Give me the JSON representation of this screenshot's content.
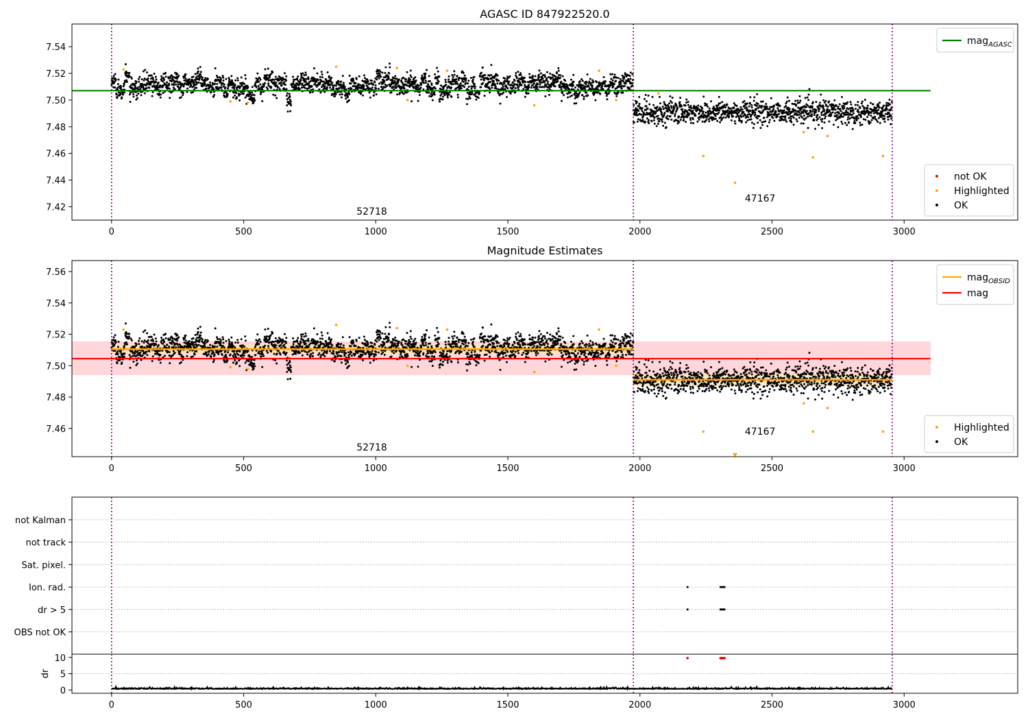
{
  "chart_data": [
    {
      "type": "scatter",
      "title": "AGASC ID 847922520.0",
      "xlim": [
        -150,
        3430
      ],
      "ylim": [
        7.41,
        7.557
      ],
      "xticks": [
        0,
        500,
        1000,
        1500,
        2000,
        2500,
        3000
      ],
      "yticks": [
        7.42,
        7.44,
        7.46,
        7.48,
        7.5,
        7.52,
        7.54
      ],
      "segments": [
        {
          "x_start": 0,
          "x_end": 1975,
          "center": 7.511,
          "scatter": 0.004,
          "label": "52718"
        },
        {
          "x_start": 1975,
          "x_end": 2955,
          "center": 7.491,
          "scatter": 0.005,
          "label": "47167"
        }
      ],
      "obsid_boundaries": [
        0,
        1975,
        2955
      ],
      "lines": [
        {
          "name": "mag_AGASC",
          "legend_main": "mag",
          "legend_sub": "AGASC",
          "value": 7.507,
          "x_range": [
            -150,
            3100
          ],
          "color": "#008000"
        }
      ],
      "highlighted": [
        [
          45,
          7.523
        ],
        [
          450,
          7.499
        ],
        [
          515,
          7.498
        ],
        [
          850,
          7.525
        ],
        [
          1080,
          7.524
        ],
        [
          1120,
          7.5
        ],
        [
          1270,
          7.522
        ],
        [
          1600,
          7.496
        ],
        [
          1845,
          7.522
        ],
        [
          1910,
          7.5
        ],
        [
          2070,
          7.505
        ],
        [
          2240,
          7.458
        ],
        [
          2360,
          7.438
        ],
        [
          2620,
          7.476
        ],
        [
          2655,
          7.457
        ],
        [
          2710,
          7.473
        ],
        [
          2920,
          7.458
        ]
      ],
      "annotations": [
        {
          "text": "52718",
          "x": 985,
          "y": 7.414
        },
        {
          "text": "47167",
          "x": 2455,
          "y": 7.424
        }
      ],
      "legends": {
        "upper": [
          {
            "label_main": "mag",
            "label_sub": "AGASC",
            "color": "#008000",
            "kind": "line"
          }
        ],
        "lower": [
          {
            "label": "not OK",
            "color": "#ff0000",
            "kind": "dot"
          },
          {
            "label": "Highlighted",
            "color": "#ffa500",
            "kind": "dot"
          },
          {
            "label": "OK",
            "color": "#000000",
            "kind": "dot"
          }
        ]
      }
    },
    {
      "type": "scatter",
      "title": "Magnitude Estimates",
      "xlim": [
        -150,
        3430
      ],
      "ylim": [
        7.442,
        7.567
      ],
      "xticks": [
        0,
        500,
        1000,
        1500,
        2000,
        2500,
        3000
      ],
      "yticks": [
        7.46,
        7.48,
        7.5,
        7.52,
        7.54,
        7.56
      ],
      "segments": [
        {
          "x_start": 0,
          "x_end": 1975,
          "center": 7.511,
          "scatter": 0.004,
          "label": "52718"
        },
        {
          "x_start": 1975,
          "x_end": 2955,
          "center": 7.491,
          "scatter": 0.005,
          "label": "47167"
        }
      ],
      "obsid_boundaries": [
        0,
        1975,
        2955
      ],
      "mag": {
        "value": 7.5045,
        "band": [
          7.494,
          7.5155
        ],
        "x_range": [
          -150,
          3100
        ],
        "color": "#ff0000"
      },
      "mag_obsid": [
        {
          "x_start": 0,
          "x_end": 1975,
          "value": 7.5105,
          "band": [
            7.507,
            7.514
          ]
        },
        {
          "x_start": 1975,
          "x_end": 2955,
          "value": 7.491,
          "band": [
            7.487,
            7.495
          ]
        }
      ],
      "highlighted": [
        [
          45,
          7.523
        ],
        [
          450,
          7.499
        ],
        [
          515,
          7.498
        ],
        [
          850,
          7.526
        ],
        [
          1080,
          7.524
        ],
        [
          1120,
          7.5
        ],
        [
          1270,
          7.523
        ],
        [
          1600,
          7.496
        ],
        [
          1845,
          7.523
        ],
        [
          1910,
          7.5
        ],
        [
          2240,
          7.458
        ],
        [
          2655,
          7.458
        ],
        [
          2710,
          7.473
        ],
        [
          2620,
          7.476
        ],
        [
          2920,
          7.458
        ]
      ],
      "offscale_marker": {
        "x": 2360,
        "y": 7.443
      },
      "annotations": [
        {
          "text": "52718",
          "x": 985,
          "y": 7.446
        },
        {
          "text": "47167",
          "x": 2455,
          "y": 7.456
        }
      ],
      "legends": {
        "upper": [
          {
            "label_main": "mag",
            "label_sub": "OBSID",
            "color": "#ffa500",
            "kind": "line"
          },
          {
            "label_main": "mag",
            "label_sub": "",
            "color": "#ff0000",
            "kind": "line"
          }
        ],
        "lower": [
          {
            "label": "Highlighted",
            "color": "#ffa500",
            "kind": "dot"
          },
          {
            "label": "OK",
            "color": "#000000",
            "kind": "dot"
          }
        ]
      }
    },
    {
      "type": "scatter",
      "title": "",
      "xlim": [
        -150,
        3430
      ],
      "categories": [
        "not Kalman",
        "not track",
        "Sat. pixel.",
        "Ion. rad.",
        "dr > 5",
        "OBS not OK"
      ],
      "obsid_boundaries": [
        0,
        1975,
        2955
      ],
      "flag_points": [
        {
          "category": "Ion. rad.",
          "x": [
            2180,
            2305,
            2310,
            2315,
            2320
          ]
        },
        {
          "category": "dr > 5",
          "x": [
            2180,
            2305,
            2310,
            2315,
            2320
          ]
        }
      ]
    },
    {
      "type": "line",
      "title": "",
      "ylabel": "dr",
      "xlim": [
        -150,
        3430
      ],
      "ylim": [
        -1,
        11
      ],
      "xticks": [
        0,
        500,
        1000,
        1500,
        2000,
        2500,
        3000
      ],
      "yticks": [
        0,
        5,
        10
      ],
      "baseline": 0.3,
      "outliers": [
        [
          2180,
          9.8
        ],
        [
          2305,
          9.8
        ],
        [
          2310,
          9.8
        ],
        [
          2315,
          9.8
        ],
        [
          2320,
          9.8
        ]
      ]
    }
  ],
  "colors": {
    "ok": "#000000",
    "highlighted": "#ffa500",
    "not_ok": "#ff0000",
    "agasc_line": "#008000",
    "obsid_line": "#ffa500",
    "mag_line": "#ff0000",
    "mag_band": "#ffd6da",
    "obsid_band": "#ffe3b8",
    "obsid_boundary": "#800080"
  }
}
